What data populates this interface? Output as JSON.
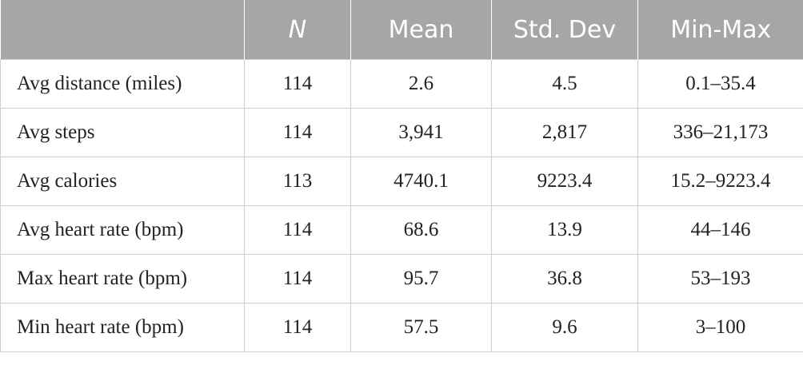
{
  "table": {
    "header": [
      "N",
      "Mean",
      "Std. Dev",
      "Min-Max"
    ],
    "rows": [
      [
        "Avg distance (miles)",
        "114",
        "2.6",
        "4.5",
        "0.1–35.4"
      ],
      [
        "Avg steps",
        "114",
        "3,941",
        "2,817",
        "336–21,173"
      ],
      [
        "Avg calories",
        "113",
        "4740.1",
        "9223.4",
        "15.2–9223.4"
      ],
      [
        "Avg heart rate (bpm)",
        "114",
        "68.6",
        "13.9",
        "44–146"
      ],
      [
        "Max heart rate (bpm)",
        "114",
        "95.7",
        "36.8",
        "53–193"
      ],
      [
        "Min heart rate (bpm)",
        "114",
        "57.5",
        "9.6",
        "3–100"
      ]
    ]
  }
}
